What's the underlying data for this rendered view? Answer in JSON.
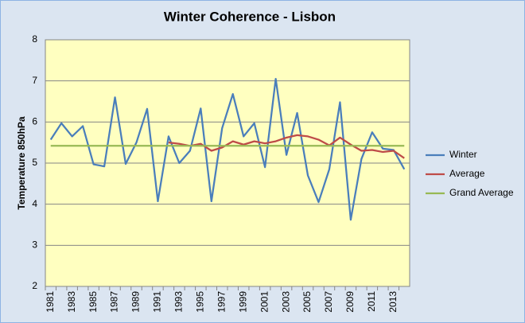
{
  "chart_data": {
    "type": "line",
    "title": "Winter Coherence - Lisbon",
    "y_label": "Temperature 850hPa",
    "categories": [
      "1981",
      null,
      "1983",
      null,
      "1985",
      null,
      "1987",
      null,
      "1989",
      null,
      "1991",
      null,
      "1993",
      null,
      "1995",
      null,
      "1997",
      null,
      "1999",
      null,
      "2001",
      null,
      "2003",
      null,
      "2005",
      null,
      "2007",
      null,
      "2009",
      null,
      "2011",
      null,
      "2013",
      null
    ],
    "series": [
      {
        "name": "Winter",
        "color": "#4a7ebb",
        "values": [
          5.57,
          5.97,
          5.65,
          5.9,
          4.97,
          4.92,
          6.6,
          4.98,
          5.5,
          6.32,
          4.07,
          5.65,
          5.0,
          5.3,
          6.33,
          4.07,
          5.85,
          6.68,
          5.65,
          5.97,
          4.9,
          7.05,
          5.2,
          6.22,
          4.7,
          4.05,
          4.85,
          6.48,
          3.62,
          5.1,
          5.75,
          5.35,
          5.32,
          4.85
        ]
      },
      {
        "name": "Average",
        "color": "#be4b48",
        "values": [
          null,
          null,
          null,
          null,
          null,
          null,
          null,
          null,
          null,
          null,
          null,
          5.5,
          5.47,
          5.42,
          5.47,
          5.3,
          5.38,
          5.53,
          5.45,
          5.53,
          5.48,
          5.53,
          5.62,
          5.68,
          5.65,
          5.57,
          5.43,
          5.62,
          5.45,
          5.3,
          5.32,
          5.27,
          5.3,
          5.12
        ]
      },
      {
        "name": "Grand Average",
        "color": "#98b954",
        "values": [
          5.42,
          5.42,
          5.42,
          5.42,
          5.42,
          5.42,
          5.42,
          5.42,
          5.42,
          5.42,
          5.42,
          5.42,
          5.42,
          5.42,
          5.42,
          5.42,
          5.42,
          5.42,
          5.42,
          5.42,
          5.42,
          5.42,
          5.42,
          5.42,
          5.42,
          5.42,
          5.42,
          5.42,
          5.42,
          5.42,
          5.42,
          5.42,
          5.42,
          5.42
        ]
      }
    ],
    "ylim": [
      2,
      8
    ],
    "yticks": [
      2,
      3,
      4,
      5,
      6,
      7,
      8
    ],
    "grid": true,
    "legend": "right"
  }
}
